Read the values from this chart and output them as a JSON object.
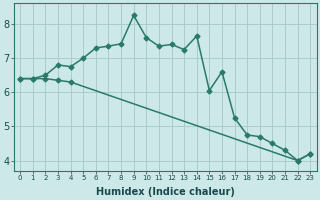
{
  "xlabel": "Humidex (Indice chaleur)",
  "ylabel": "",
  "background_color": "#cce8e8",
  "line_color": "#2a7a6a",
  "grid_color": "#aacccc",
  "line1_x": [
    0,
    1,
    2,
    3,
    4,
    5,
    6,
    7,
    8,
    9,
    10,
    11,
    12,
    13,
    14,
    15,
    16,
    17,
    18,
    19,
    20,
    21,
    22,
    23
  ],
  "line1_y": [
    6.4,
    6.4,
    6.5,
    6.8,
    6.75,
    7.0,
    7.3,
    7.35,
    7.42,
    8.25,
    7.6,
    7.35,
    7.4,
    7.25,
    7.65,
    6.05,
    6.6,
    5.25,
    4.75,
    4.7,
    4.5,
    4.3,
    4.0,
    4.2
  ],
  "line2_x": [
    0,
    1,
    2,
    3,
    4,
    22,
    23
  ],
  "line2_y": [
    6.4,
    6.4,
    6.4,
    6.35,
    6.3,
    4.0,
    4.2
  ],
  "xlim": [
    -0.5,
    23.5
  ],
  "ylim": [
    3.7,
    8.6
  ],
  "yticks": [
    4,
    5,
    6,
    7,
    8
  ],
  "xticks": [
    0,
    1,
    2,
    3,
    4,
    5,
    6,
    7,
    8,
    9,
    10,
    11,
    12,
    13,
    14,
    15,
    16,
    17,
    18,
    19,
    20,
    21,
    22,
    23
  ],
  "xlabel_fontsize": 7,
  "tick_fontsize_x": 5,
  "tick_fontsize_y": 7
}
